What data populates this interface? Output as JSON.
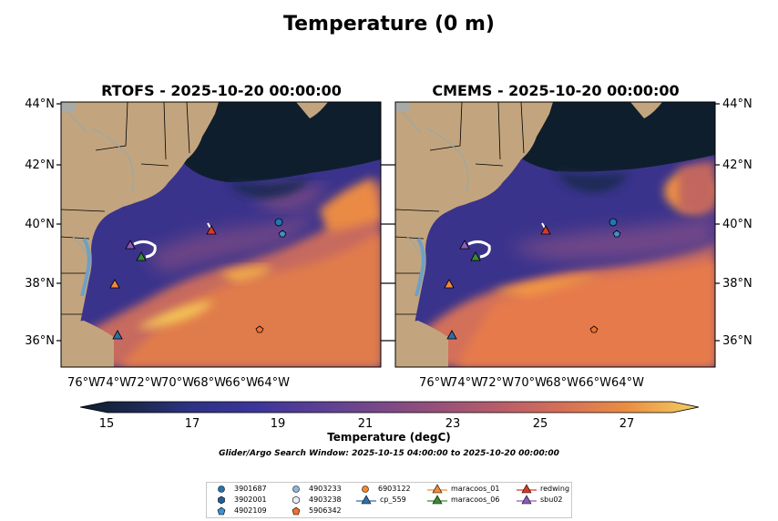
{
  "figure": {
    "title": "Temperature (0 m)",
    "panels": [
      {
        "title": "RTOFS - 2025-10-20 00:00:00"
      },
      {
        "title": "CMEMS - 2025-10-20 00:00:00"
      }
    ],
    "lon_ticks": [
      "76°W",
      "74°W",
      "72°W",
      "70°W",
      "68°W",
      "66°W",
      "64°W"
    ],
    "lat_ticks": [
      "44°N",
      "42°N",
      "40°N",
      "38°N",
      "36°N"
    ]
  },
  "colorbar": {
    "label": "Temperature (degC)",
    "ticks": [
      "15",
      "17",
      "19",
      "21",
      "23",
      "25",
      "27"
    ],
    "colors": [
      "#0e1f2c",
      "#1a2a44",
      "#272e6e",
      "#343592",
      "#4a3a9c",
      "#5e3f93",
      "#704688",
      "#854b80",
      "#9a5178",
      "#ad5a6f",
      "#c06466",
      "#d06d5c",
      "#dc7652",
      "#e68346",
      "#ee9540",
      "#f2ad4a",
      "#f3c95a"
    ]
  },
  "search_window": "Glider/Argo Search Window: 2025-10-15 04:00:00 to 2025-10-20 00:00:00",
  "legend": {
    "items": [
      {
        "label": "3901687",
        "symbol": "circle",
        "color": "#1f77b4"
      },
      {
        "label": "3902001",
        "symbol": "hexagon",
        "color": "#1f5f9a"
      },
      {
        "label": "4902109",
        "symbol": "pentagon",
        "color": "#3f8fd0"
      },
      {
        "label": "4903233",
        "symbol": "circle",
        "color": "#8fb8e0"
      },
      {
        "label": "4903238",
        "symbol": "hexagon",
        "color": "#e8eef6"
      },
      {
        "label": "5906342",
        "symbol": "pentagon",
        "color": "#f07030"
      },
      {
        "label": "6903122",
        "symbol": "circle",
        "color": "#f5892f"
      },
      {
        "label": "cp_559",
        "symbol": "triangle-line",
        "color": "#2f6fa8"
      },
      {
        "label": "maracoos_01",
        "symbol": "triangle-line",
        "color": "#f08a3a"
      },
      {
        "label": "maracoos_06",
        "symbol": "triangle-line",
        "color": "#3b8a34"
      },
      {
        "label": "redwing",
        "symbol": "triangle-line",
        "color": "#d63a2a"
      },
      {
        "label": "sbu02",
        "symbol": "triangle-line",
        "color": "#8a5cb8"
      }
    ]
  }
}
